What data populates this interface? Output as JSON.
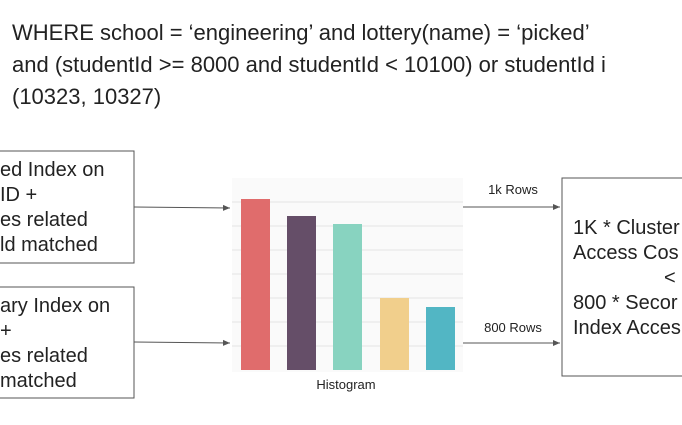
{
  "query": {
    "lines": [
      "WHERE school = ‘engineering’  and lottery(name) = ‘picked’",
      "and (studentId >= 8000 and studentId < 10100) or studentId i",
      "(10323, 10327)"
    ]
  },
  "left_boxes": [
    {
      "lines": [
        "ed Index on",
        "ID +",
        "es related",
        "ld matched"
      ]
    },
    {
      "lines": [
        "ary Index on",
        "+",
        "es related",
        "matched"
      ]
    }
  ],
  "histogram": {
    "label": "Histogram"
  },
  "arrows": [
    {
      "label": "1k Rows"
    },
    {
      "label": "800 Rows"
    }
  ],
  "right_box": {
    "lines": [
      "1K * Cluster",
      "Access Cos",
      "<",
      "800 * Secor",
      "Index Acces"
    ]
  }
}
